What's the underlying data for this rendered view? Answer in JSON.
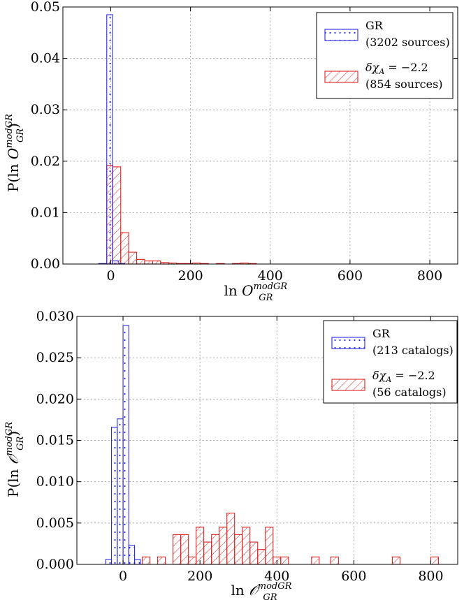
{
  "chart_data": [
    {
      "type": "bar",
      "title": "",
      "xlabel": {
        "prefix": "ln ",
        "symbol": "O",
        "superscript": "modGR",
        "subscript": "GR"
      },
      "ylabel": {
        "prefix": "P(ln ",
        "symbol": "O",
        "superscript": "modGR",
        "subscript": "GR",
        "suffix": ")"
      },
      "xlim": [
        -120,
        870
      ],
      "ylim": [
        0,
        0.05
      ],
      "xticks": [
        0,
        200,
        400,
        600,
        800
      ],
      "xtick_labels": [
        "0",
        "200",
        "400",
        "600",
        "800"
      ],
      "yticks": [
        0,
        0.01,
        0.02,
        0.03,
        0.04,
        0.05
      ],
      "ytick_labels": [
        "0.00",
        "0.01",
        "0.02",
        "0.03",
        "0.04",
        "0.05"
      ],
      "grid": true,
      "legend_position": "top-right",
      "series": [
        {
          "name": "GR",
          "count_label": "(3202 sources)",
          "color": "#2a2ae0",
          "pattern": "dots",
          "bins": [
            {
              "x0": -30,
              "x1": -10,
              "y": 0.0001
            },
            {
              "x0": -10,
              "x1": 5,
              "y": 0.0485
            },
            {
              "x0": 5,
              "x1": 20,
              "y": 0.0006
            },
            {
              "x0": 20,
              "x1": 35,
              "y": 0.0001
            }
          ]
        },
        {
          "name": "δχ_A = −2.2",
          "count_label": "(854 sources)",
          "color": "#e02020",
          "pattern": "hatch",
          "bins": [
            {
              "x0": -10,
              "x1": 5,
              "y": 0.0192
            },
            {
              "x0": 5,
              "x1": 25,
              "y": 0.0189
            },
            {
              "x0": 25,
              "x1": 45,
              "y": 0.0061
            },
            {
              "x0": 45,
              "x1": 65,
              "y": 0.0023
            },
            {
              "x0": 65,
              "x1": 85,
              "y": 0.0009
            },
            {
              "x0": 85,
              "x1": 105,
              "y": 0.0006
            },
            {
              "x0": 105,
              "x1": 125,
              "y": 0.0006
            },
            {
              "x0": 125,
              "x1": 145,
              "y": 0.0003
            },
            {
              "x0": 145,
              "x1": 165,
              "y": 0.0002
            },
            {
              "x0": 165,
              "x1": 185,
              "y": 0.0001
            },
            {
              "x0": 185,
              "x1": 205,
              "y": 0.0001
            },
            {
              "x0": 205,
              "x1": 225,
              "y": 0.0002
            },
            {
              "x0": 225,
              "x1": 245,
              "y": 0.0001
            },
            {
              "x0": 265,
              "x1": 285,
              "y": 0.0001
            },
            {
              "x0": 305,
              "x1": 325,
              "y": 0.0001
            },
            {
              "x0": 325,
              "x1": 345,
              "y": 0.0002
            },
            {
              "x0": 345,
              "x1": 365,
              "y": 0.0001
            }
          ]
        }
      ]
    },
    {
      "type": "bar",
      "title": "",
      "xlabel": {
        "prefix": "ln ",
        "symbol": "𝒪",
        "superscript": "modGR",
        "subscript": "GR"
      },
      "ylabel": {
        "prefix": "P(ln ",
        "symbol": "𝒪",
        "superscript": "modGR",
        "subscript": "GR",
        "suffix": ")"
      },
      "xlim": [
        -120,
        870
      ],
      "ylim": [
        0,
        0.03
      ],
      "xticks": [
        0,
        200,
        400,
        600,
        800
      ],
      "xtick_labels": [
        "0",
        "200",
        "400",
        "600",
        "800"
      ],
      "yticks": [
        0,
        0.005,
        0.01,
        0.015,
        0.02,
        0.025,
        0.03
      ],
      "ytick_labels": [
        "0.000",
        "0.005",
        "0.010",
        "0.015",
        "0.020",
        "0.025",
        "0.030"
      ],
      "grid": true,
      "legend_position": "top-right",
      "series": [
        {
          "name": "GR",
          "count_label": "(213 catalogs)",
          "color": "#2a2ae0",
          "pattern": "dots",
          "bins": [
            {
              "x0": -45,
              "x1": -30,
              "y": 0.0006
            },
            {
              "x0": -30,
              "x1": -15,
              "y": 0.0166
            },
            {
              "x0": -15,
              "x1": 0,
              "y": 0.0176
            },
            {
              "x0": 0,
              "x1": 15,
              "y": 0.0289
            },
            {
              "x0": 15,
              "x1": 30,
              "y": 0.0023
            },
            {
              "x0": 30,
              "x1": 45,
              "y": 0.0006
            }
          ]
        },
        {
          "name": "δχ_A = −2.2",
          "count_label": "(56 catalogs)",
          "color": "#e02020",
          "pattern": "hatch",
          "bins": [
            {
              "x0": 50,
              "x1": 70,
              "y": 0.0009
            },
            {
              "x0": 90,
              "x1": 110,
              "y": 0.0009
            },
            {
              "x0": 130,
              "x1": 150,
              "y": 0.0036
            },
            {
              "x0": 150,
              "x1": 170,
              "y": 0.0036
            },
            {
              "x0": 170,
              "x1": 190,
              "y": 0.0009
            },
            {
              "x0": 190,
              "x1": 210,
              "y": 0.0045
            },
            {
              "x0": 210,
              "x1": 230,
              "y": 0.0027
            },
            {
              "x0": 230,
              "x1": 250,
              "y": 0.0036
            },
            {
              "x0": 250,
              "x1": 270,
              "y": 0.0045
            },
            {
              "x0": 270,
              "x1": 290,
              "y": 0.0062
            },
            {
              "x0": 290,
              "x1": 310,
              "y": 0.0036
            },
            {
              "x0": 310,
              "x1": 330,
              "y": 0.0045
            },
            {
              "x0": 330,
              "x1": 350,
              "y": 0.0027
            },
            {
              "x0": 350,
              "x1": 370,
              "y": 0.0018
            },
            {
              "x0": 370,
              "x1": 390,
              "y": 0.0045
            },
            {
              "x0": 390,
              "x1": 410,
              "y": 0.0009
            },
            {
              "x0": 410,
              "x1": 430,
              "y": 0.0009
            },
            {
              "x0": 490,
              "x1": 510,
              "y": 0.0009
            },
            {
              "x0": 540,
              "x1": 560,
              "y": 0.0009
            },
            {
              "x0": 700,
              "x1": 720,
              "y": 0.0009
            },
            {
              "x0": 800,
              "x1": 820,
              "y": 0.0009
            }
          ]
        }
      ]
    }
  ]
}
